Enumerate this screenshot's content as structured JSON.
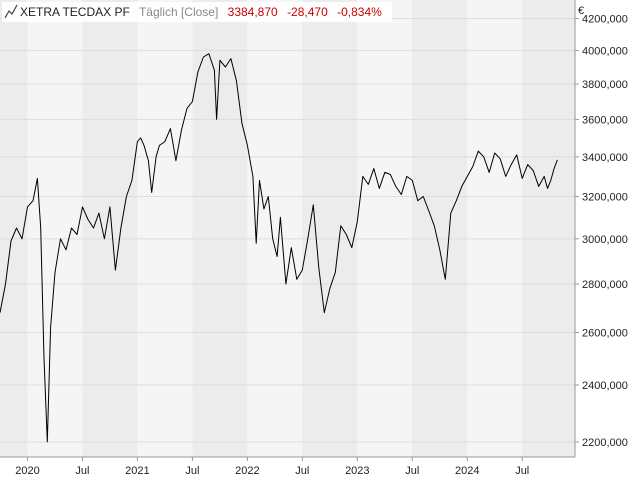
{
  "legend": {
    "icon": "line-chart-icon",
    "name": "XETRA TECDAX PF",
    "mode": "Täglich [Close]",
    "last": "3384,870",
    "change": "-28,470",
    "change_pct": "-0,834%"
  },
  "currency_label": "€",
  "colors": {
    "line": "#000000",
    "negative": "#cc0000",
    "band_dark": "#ececec",
    "band_light": "#f5f5f5",
    "grid": "#dddddd",
    "axis": "#999999",
    "text": "#222222"
  },
  "chart_data": {
    "type": "line",
    "title": "XETRA TECDAX PF",
    "x_unit": "year",
    "y_scale": "log",
    "ylim": [
      2150,
      4320
    ],
    "xlim": [
      2019.75,
      2024.98
    ],
    "grid": true,
    "y_ticks": [
      {
        "value": 2200,
        "label": "2200,000"
      },
      {
        "value": 2400,
        "label": "2400,000"
      },
      {
        "value": 2600,
        "label": "2600,000"
      },
      {
        "value": 2800,
        "label": "2800,000"
      },
      {
        "value": 3000,
        "label": "3000,000"
      },
      {
        "value": 3200,
        "label": "3200,000"
      },
      {
        "value": 3400,
        "label": "3400,000"
      },
      {
        "value": 3600,
        "label": "3600,000"
      },
      {
        "value": 3800,
        "label": "3800,000"
      },
      {
        "value": 4000,
        "label": "4000,000"
      },
      {
        "value": 4200,
        "label": "4200,000"
      }
    ],
    "x_ticks": [
      {
        "value": 2020.0,
        "label": "2020"
      },
      {
        "value": 2020.5,
        "label": "Jul"
      },
      {
        "value": 2021.0,
        "label": "2021"
      },
      {
        "value": 2021.5,
        "label": "Jul"
      },
      {
        "value": 2022.0,
        "label": "2022"
      },
      {
        "value": 2022.5,
        "label": "Jul"
      },
      {
        "value": 2023.0,
        "label": "2023"
      },
      {
        "value": 2023.5,
        "label": "Jul"
      },
      {
        "value": 2024.0,
        "label": "2024"
      },
      {
        "value": 2024.5,
        "label": "Jul"
      }
    ],
    "series": [
      {
        "values": [
          [
            2019.75,
            2680
          ],
          [
            2019.8,
            2800
          ],
          [
            2019.85,
            2990
          ],
          [
            2019.9,
            3050
          ],
          [
            2019.95,
            3000
          ],
          [
            2020.0,
            3150
          ],
          [
            2020.05,
            3180
          ],
          [
            2020.09,
            3290
          ],
          [
            2020.12,
            3050
          ],
          [
            2020.15,
            2500
          ],
          [
            2020.18,
            2200
          ],
          [
            2020.21,
            2620
          ],
          [
            2020.25,
            2850
          ],
          [
            2020.3,
            3000
          ],
          [
            2020.35,
            2950
          ],
          [
            2020.4,
            3050
          ],
          [
            2020.45,
            3020
          ],
          [
            2020.5,
            3150
          ],
          [
            2020.55,
            3090
          ],
          [
            2020.6,
            3050
          ],
          [
            2020.65,
            3120
          ],
          [
            2020.7,
            3000
          ],
          [
            2020.75,
            3150
          ],
          [
            2020.8,
            2860
          ],
          [
            2020.85,
            3050
          ],
          [
            2020.9,
            3200
          ],
          [
            2020.95,
            3280
          ],
          [
            2021.0,
            3480
          ],
          [
            2021.03,
            3500
          ],
          [
            2021.06,
            3460
          ],
          [
            2021.1,
            3380
          ],
          [
            2021.13,
            3220
          ],
          [
            2021.17,
            3400
          ],
          [
            2021.2,
            3460
          ],
          [
            2021.25,
            3480
          ],
          [
            2021.3,
            3550
          ],
          [
            2021.35,
            3380
          ],
          [
            2021.4,
            3540
          ],
          [
            2021.45,
            3660
          ],
          [
            2021.5,
            3700
          ],
          [
            2021.55,
            3870
          ],
          [
            2021.6,
            3960
          ],
          [
            2021.65,
            3980
          ],
          [
            2021.7,
            3880
          ],
          [
            2021.72,
            3600
          ],
          [
            2021.75,
            3940
          ],
          [
            2021.8,
            3900
          ],
          [
            2021.85,
            3950
          ],
          [
            2021.9,
            3820
          ],
          [
            2021.95,
            3580
          ],
          [
            2022.0,
            3460
          ],
          [
            2022.05,
            3300
          ],
          [
            2022.08,
            2980
          ],
          [
            2022.11,
            3280
          ],
          [
            2022.15,
            3140
          ],
          [
            2022.19,
            3200
          ],
          [
            2022.23,
            3000
          ],
          [
            2022.27,
            2920
          ],
          [
            2022.3,
            3100
          ],
          [
            2022.35,
            2800
          ],
          [
            2022.4,
            2960
          ],
          [
            2022.45,
            2820
          ],
          [
            2022.5,
            2860
          ],
          [
            2022.55,
            3000
          ],
          [
            2022.6,
            3160
          ],
          [
            2022.65,
            2870
          ],
          [
            2022.7,
            2680
          ],
          [
            2022.75,
            2780
          ],
          [
            2022.8,
            2850
          ],
          [
            2022.85,
            3060
          ],
          [
            2022.9,
            3020
          ],
          [
            2022.95,
            2960
          ],
          [
            2023.0,
            3080
          ],
          [
            2023.05,
            3300
          ],
          [
            2023.1,
            3260
          ],
          [
            2023.15,
            3340
          ],
          [
            2023.2,
            3240
          ],
          [
            2023.25,
            3320
          ],
          [
            2023.3,
            3310
          ],
          [
            2023.35,
            3250
          ],
          [
            2023.4,
            3210
          ],
          [
            2023.45,
            3300
          ],
          [
            2023.5,
            3280
          ],
          [
            2023.55,
            3180
          ],
          [
            2023.6,
            3200
          ],
          [
            2023.65,
            3130
          ],
          [
            2023.7,
            3060
          ],
          [
            2023.75,
            2950
          ],
          [
            2023.8,
            2820
          ],
          [
            2023.85,
            3120
          ],
          [
            2023.9,
            3180
          ],
          [
            2023.95,
            3250
          ],
          [
            2024.0,
            3300
          ],
          [
            2024.05,
            3350
          ],
          [
            2024.1,
            3430
          ],
          [
            2024.15,
            3400
          ],
          [
            2024.2,
            3320
          ],
          [
            2024.25,
            3420
          ],
          [
            2024.3,
            3390
          ],
          [
            2024.35,
            3300
          ],
          [
            2024.4,
            3360
          ],
          [
            2024.45,
            3410
          ],
          [
            2024.5,
            3290
          ],
          [
            2024.55,
            3360
          ],
          [
            2024.6,
            3330
          ],
          [
            2024.65,
            3250
          ],
          [
            2024.7,
            3300
          ],
          [
            2024.73,
            3240
          ],
          [
            2024.76,
            3280
          ],
          [
            2024.79,
            3340
          ],
          [
            2024.82,
            3384.87
          ]
        ]
      }
    ]
  }
}
